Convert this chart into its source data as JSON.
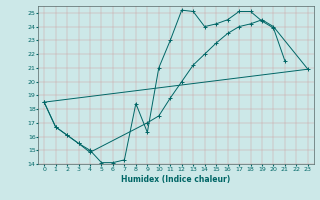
{
  "xlabel": "Humidex (Indice chaleur)",
  "bg_color": "#cce8e8",
  "grid_color": "#b0c8c8",
  "line_color": "#006666",
  "xlim": [
    -0.5,
    23.5
  ],
  "ylim": [
    14,
    25.5
  ],
  "yticks": [
    14,
    15,
    16,
    17,
    18,
    19,
    20,
    21,
    22,
    23,
    24,
    25
  ],
  "xticks": [
    0,
    1,
    2,
    3,
    4,
    5,
    6,
    7,
    8,
    9,
    10,
    11,
    12,
    13,
    14,
    15,
    16,
    17,
    18,
    19,
    20,
    21,
    22,
    23
  ],
  "line1_x": [
    0,
    1,
    2,
    3,
    4,
    5,
    6,
    7,
    8,
    9,
    10,
    11,
    12,
    13,
    14,
    15,
    16,
    17,
    18,
    19,
    20,
    21
  ],
  "line1_y": [
    18.5,
    16.7,
    16.1,
    15.5,
    15.0,
    14.1,
    14.1,
    14.3,
    18.4,
    16.3,
    21.0,
    23.0,
    25.2,
    25.1,
    24.0,
    24.2,
    24.5,
    25.1,
    25.1,
    24.4,
    23.9,
    21.5
  ],
  "line2_x": [
    0,
    23
  ],
  "line2_y": [
    18.5,
    20.9
  ],
  "line3_x": [
    0,
    1,
    2,
    3,
    4,
    9,
    10,
    11,
    12,
    13,
    14,
    15,
    16,
    17,
    18,
    19,
    20,
    23
  ],
  "line3_y": [
    18.5,
    16.7,
    16.1,
    15.5,
    14.85,
    17.0,
    17.5,
    18.8,
    20.0,
    21.2,
    22.0,
    22.8,
    23.5,
    24.0,
    24.2,
    24.5,
    24.0,
    20.9
  ]
}
